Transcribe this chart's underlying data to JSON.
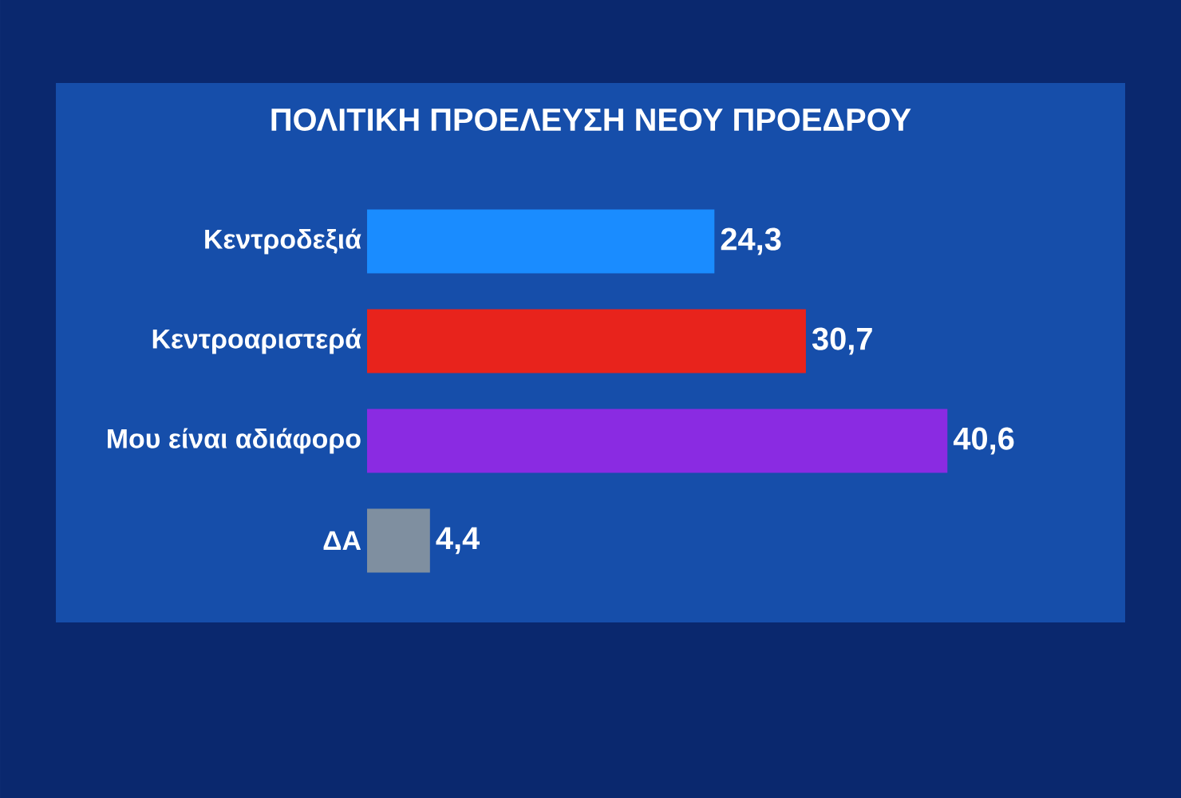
{
  "chart_data": {
    "type": "bar",
    "orientation": "horizontal",
    "title": "ΠΟΛΙΤΙΚΗ ΠΡΟΕΛΕΥΣΗ ΝΕΟΥ ΠΡΟΕΔΡΟΥ",
    "categories": [
      "Κεντροδεξιά",
      "Κεντροαριστερά",
      "Μου είναι αδιάφορο",
      "ΔΑ"
    ],
    "values": [
      24.3,
      30.7,
      40.6,
      4.4
    ],
    "value_labels": [
      "24,3",
      "30,7",
      "40,6",
      "4,4"
    ],
    "colors": [
      "#1a8cff",
      "#e8231c",
      "#8a2be2",
      "#7f8fa0"
    ],
    "tick_labels": "y"
  }
}
